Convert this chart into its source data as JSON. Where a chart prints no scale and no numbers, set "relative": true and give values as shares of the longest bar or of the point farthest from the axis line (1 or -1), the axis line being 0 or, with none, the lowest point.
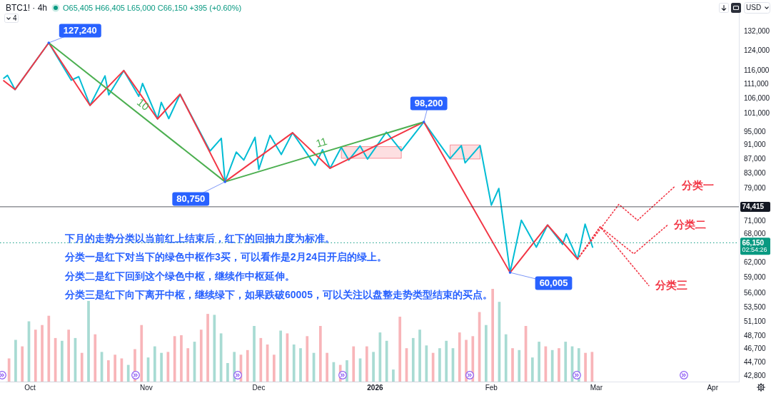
{
  "chart_data": [
    {
      "type": "line",
      "title": "BTC1! · 4h",
      "subtitle": "O65,405 H66,405 L65,000 C66,150 +395 (+0.60%)",
      "log": "y",
      "xlim": [
        "2025-09-23",
        "2026-04-08"
      ],
      "xticks": [
        {
          "value": "2025-10-01",
          "label": "Oct"
        },
        {
          "value": "2025-11-01",
          "label": "Nov"
        },
        {
          "value": "2025-12-01",
          "label": "Dec"
        },
        {
          "value": "2026-01-01",
          "label": "2026"
        },
        {
          "value": "2026-02-01",
          "label": "Feb"
        },
        {
          "value": "2026-03-01",
          "label": "Mar"
        },
        {
          "value": "2026-04-01",
          "label": "Apr"
        }
      ],
      "ylim": [
        42000,
        142000
      ],
      "yticks": [
        {
          "value": 42800,
          "label": "42,800"
        },
        {
          "value": 44700,
          "label": "44,700"
        },
        {
          "value": 46700,
          "label": "46,700"
        },
        {
          "value": 48700,
          "label": "48,700"
        },
        {
          "value": 51100,
          "label": "51,100"
        },
        {
          "value": 53500,
          "label": "53,500"
        },
        {
          "value": 56000,
          "label": "56,000"
        },
        {
          "value": 59000,
          "label": "59,000"
        },
        {
          "value": 62000,
          "label": "62,000"
        },
        {
          "value": 68000,
          "label": "68,000"
        },
        {
          "value": 71000,
          "label": "71,000"
        },
        {
          "value": 79000,
          "label": "79,000"
        },
        {
          "value": 83000,
          "label": "83,000"
        },
        {
          "value": 87000,
          "label": "87,000"
        },
        {
          "value": 91000,
          "label": "91,000"
        },
        {
          "value": 95000,
          "label": "95,000"
        },
        {
          "value": 101000,
          "label": "101,000"
        },
        {
          "value": 106000,
          "label": "106,000"
        },
        {
          "value": 111000,
          "label": "111,000"
        },
        {
          "value": 116000,
          "label": "116,000"
        },
        {
          "value": 124000,
          "label": "124,000"
        },
        {
          "value": 132000,
          "label": "132,000"
        }
      ],
      "series": [
        {
          "color": "#00bcd4",
          "x": [
            "2025-09-24",
            "2025-09-25",
            "2025-09-27",
            "2025-10-06",
            "2025-10-12",
            "2025-10-14",
            "2025-10-17",
            "2025-10-21",
            "2025-10-22",
            "2025-10-26",
            "2025-10-30",
            "2025-10-31",
            "2025-11-04",
            "2025-11-05",
            "2025-11-07",
            "2025-11-10",
            "2025-11-18",
            "2025-11-21",
            "2025-11-22",
            "2025-11-25",
            "2025-11-27",
            "2025-11-30",
            "2025-12-01",
            "2025-12-04",
            "2025-12-07",
            "2025-12-10",
            "2025-12-16",
            "2025-12-18",
            "2025-12-20",
            "2025-12-23",
            "2025-12-25",
            "2025-12-28",
            "2025-12-30",
            "2026-01-04",
            "2026-01-08",
            "2026-01-14",
            "2026-01-21",
            "2026-01-24",
            "2026-01-25",
            "2026-01-29",
            "2026-02-01",
            "2026-02-03",
            "2026-02-06",
            "2026-02-09",
            "2026-02-13",
            "2026-02-16",
            "2026-02-20",
            "2026-02-21",
            "2026-02-24",
            "2026-02-26",
            "2026-02-28"
          ],
          "values": [
            113300,
            114400,
            109200,
            127240,
            112600,
            113900,
            103700,
            114200,
            107300,
            116200,
            106800,
            111400,
            99200,
            104700,
            99300,
            107500,
            89300,
            93100,
            80750,
            89000,
            86700,
            93400,
            84100,
            94000,
            88300,
            94800,
            85200,
            89700,
            84400,
            90400,
            86700,
            90800,
            87000,
            95000,
            89400,
            98200,
            87100,
            90900,
            85900,
            90900,
            74800,
            79000,
            60005,
            71200,
            65200,
            70100,
            65800,
            68100,
            62700,
            70300,
            65200
          ]
        },
        {
          "color": "#f23645",
          "x": [
            "2025-09-24",
            "2025-09-27",
            "2025-10-06",
            "2025-10-17",
            "2025-10-26",
            "2025-11-04",
            "2025-11-10",
            "2025-11-22",
            "2025-12-10",
            "2025-12-20",
            "2026-01-14",
            "2026-02-06",
            "2026-02-16",
            "2026-02-24"
          ],
          "values": [
            112400,
            109200,
            127240,
            103700,
            116200,
            99200,
            107500,
            80750,
            94800,
            84400,
            98200,
            60005,
            70100,
            62700
          ]
        },
        {
          "name": "10",
          "color": "#4caf50",
          "x": [
            "2025-10-06",
            "2025-11-22"
          ],
          "values": [
            127240,
            80750
          ]
        },
        {
          "name": "11",
          "color": "#4caf50",
          "x": [
            "2025-11-22",
            "2026-01-14"
          ],
          "values": [
            80750,
            98200
          ]
        },
        {
          "name": "分类一",
          "color": "#f23645",
          "line_style": "dotted",
          "x": [
            "2026-02-24",
            "2026-03-07",
            "2026-03-12",
            "2026-03-22"
          ],
          "values": [
            62700,
            75000,
            71200,
            79600
          ]
        },
        {
          "name": "分类二",
          "color": "#f23645",
          "line_style": "dotted",
          "x": [
            "2026-02-24",
            "2026-03-02",
            "2026-03-11",
            "2026-03-20"
          ],
          "values": [
            62700,
            69700,
            63800,
            70100
          ]
        },
        {
          "name": "分类三",
          "color": "#f23645",
          "line_style": "dotted",
          "x": [
            "2026-02-24",
            "2026-03-02",
            "2026-03-15"
          ],
          "values": [
            62700,
            69700,
            57500
          ]
        },
        {
          "color": "#f23645",
          "x": [
            "2025-12-23",
            "2026-01-08"
          ],
          "values": [
            null,
            null
          ],
          "lower": [
            87200,
            87200
          ],
          "upper": [
            90600,
            90600
          ]
        },
        {
          "color": "#f23645",
          "x": [
            "2026-01-21",
            "2026-01-29"
          ],
          "values": [
            null,
            null
          ],
          "lower": [
            87000,
            87000
          ],
          "upper": [
            91100,
            91100
          ]
        }
      ],
      "ref_lines": [
        {
          "axis": "y",
          "value": 74415,
          "label": "74,415",
          "color": "#131722"
        },
        {
          "axis": "y",
          "value": 66150,
          "label": "66,150\n02:54:26",
          "color": "#089981",
          "line_style": "dotted"
        }
      ],
      "annotations": [
        "4",
        "下月的走势分类以当前红上结束后，红下的回抽力度为标准。",
        "分类一是红下对当下的绿色中枢作3买，可以看作是2月24日开启的绿上。",
        "分类二是红下回到这个绿色中枢，继续作中枢延伸。",
        "分类三是红下向下离开中枢，继续绿下，如果跌破60005，可以关注以盘整走势类型结束的买点。",
        "USD",
        {
          "text": "127,240",
          "x": "2025-10-06",
          "y": 127240
        },
        {
          "text": "80,750",
          "x": "2025-11-22",
          "y": 80750
        },
        {
          "text": "98,200",
          "x": "2026-01-14",
          "y": 98200
        },
        {
          "text": "60,005",
          "x": "2026-02-06",
          "y": 60005
        }
      ]
    },
    {
      "type": "bar",
      "relative": true,
      "categories": [
        null,
        null,
        null,
        null,
        null,
        null,
        null,
        null,
        null,
        null,
        null,
        null,
        null,
        null,
        null,
        null,
        null,
        null,
        null,
        null,
        null,
        null,
        null,
        null,
        null,
        null,
        null,
        null,
        null,
        null,
        null,
        null,
        null,
        null,
        null,
        null,
        null,
        null,
        null,
        null,
        null,
        null,
        null,
        null,
        null,
        null,
        null,
        null,
        null,
        null,
        null,
        null,
        null,
        null,
        null,
        null,
        null,
        null,
        null,
        null,
        null,
        null,
        null,
        null,
        null,
        null,
        null,
        null,
        null,
        null,
        null,
        null,
        null,
        null,
        null,
        null,
        null,
        null,
        null,
        null,
        null,
        null,
        null,
        null,
        null,
        null,
        null,
        null,
        null
      ],
      "values": [
        0.25,
        0.45,
        0.38,
        0.65,
        0.56,
        0.61,
        0.71,
        0.47,
        0.44,
        0.56,
        0.47,
        0.31,
        0.87,
        0.51,
        0.32,
        0.23,
        0.29,
        0.25,
        0.18,
        0.35,
        0.61,
        0.26,
        0.38,
        0.31,
        0.32,
        0.49,
        0.5,
        0.36,
        0.43,
        0.56,
        0.73,
        0.72,
        0.52,
        0.2,
        0.32,
        0.29,
        0.34,
        0.6,
        0.47,
        0.4,
        0.29,
        0.55,
        0.52,
        0.4,
        0.36,
        0.49,
        0.31,
        0.6,
        0.31,
        0.21,
        0.18,
        0.23,
        0.38,
        0.25,
        0.38,
        0.32,
        0.53,
        0.44,
        0.13,
        0.7,
        0.36,
        0.47,
        0.56,
        0.39,
        0.31,
        0.36,
        0.44,
        0.36,
        0.53,
        0.45,
        0.49,
        0.75,
        0.61,
        1.0,
        0.86,
        0.51,
        0.36,
        0.34,
        0.6,
        0.26,
        0.43,
        0.38,
        0.34,
        0.36,
        0.43,
        0.38,
        0.36,
        0.31,
        0.32
      ],
      "colors": [
        "#f8b5b9",
        "#a8dbd3",
        "#f8b5b9",
        "#a8dbd3",
        "#f8b5b9",
        "#f8b5b9",
        "#f8b5b9",
        "#f8b5b9",
        "#a8dbd3",
        "#f8b5b9",
        "#a8dbd3",
        "#f8b5b9",
        "#a8dbd3",
        "#f8b5b9",
        "#a8dbd3",
        "#f8b5b9",
        "#f8b5b9",
        "#f8b5b9",
        "#a8dbd3",
        "#f8b5b9",
        "#f8b5b9",
        "#a8dbd3",
        "#a8dbd3",
        "#a8dbd3",
        "#f8b5b9",
        "#f8b5b9",
        "#f8b5b9",
        "#f8b5b9",
        "#a8dbd3",
        "#f8b5b9",
        "#f8b5b9",
        "#a8dbd3",
        "#a8dbd3",
        "#a8dbd3",
        "#a8dbd3",
        "#f8b5b9",
        "#f8b5b9",
        "#a8dbd3",
        "#f8b5b9",
        "#f8b5b9",
        "#f8b5b9",
        "#a8dbd3",
        "#f8b5b9",
        "#a8dbd3",
        "#a8dbd3",
        "#f8b5b9",
        "#a8dbd3",
        "#f8b5b9",
        "#f8b5b9",
        "#a8dbd3",
        "#f8b5b9",
        "#a8dbd3",
        "#f8b5b9",
        "#a8dbd3",
        "#f8b5b9",
        "#a8dbd3",
        "#a8dbd3",
        "#a8dbd3",
        "#a8dbd3",
        "#f8b5b9",
        "#f8b5b9",
        "#a8dbd3",
        "#a8dbd3",
        "#a8dbd3",
        "#f8b5b9",
        "#a8dbd3",
        "#a8dbd3",
        "#a8dbd3",
        "#f8b5b9",
        "#f8b5b9",
        "#f8b5b9",
        "#f8b5b9",
        "#a8dbd3",
        "#f8b5b9",
        "#a8dbd3",
        "#a8dbd3",
        "#f8b5b9",
        "#a8dbd3",
        "#f8b5b9",
        "#a8dbd3",
        "#a8dbd3",
        "#f8b5b9",
        "#a8dbd3",
        "#f8b5b9",
        "#a8dbd3",
        "#a8dbd3",
        "#a8dbd3",
        "#f8b5b9",
        "#f8b5b9"
      ]
    }
  ]
}
